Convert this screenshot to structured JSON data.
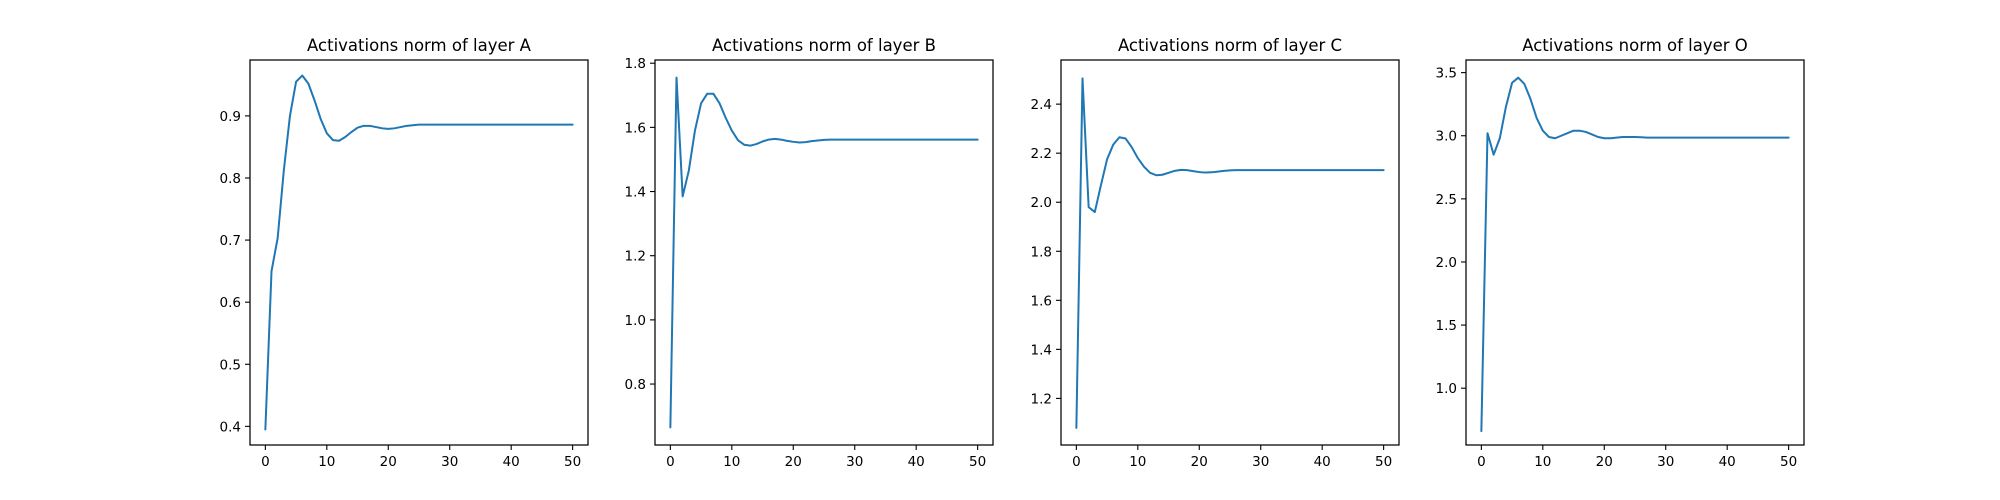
{
  "chart_data": [
    {
      "type": "line",
      "title": "Activations norm of layer A",
      "xlabel": "",
      "ylabel": "",
      "xlim": [
        -2.5,
        52.5
      ],
      "ylim": [
        0.37,
        0.99
      ],
      "xticks": [
        0,
        10,
        20,
        30,
        40,
        50
      ],
      "yticks": [
        0.4,
        0.5,
        0.6,
        0.7,
        0.8,
        0.9
      ],
      "grid": false,
      "color": "#1f77b4",
      "series": [
        {
          "x": [
            0,
            1,
            2,
            3,
            4,
            5,
            6,
            7,
            8,
            9,
            10,
            11,
            12,
            13,
            14,
            15,
            16,
            17,
            18,
            19,
            20,
            21,
            22,
            23,
            24,
            25,
            26,
            27,
            28,
            29,
            30,
            31,
            32,
            33,
            34,
            35,
            36,
            37,
            38,
            39,
            40,
            41,
            42,
            43,
            44,
            45,
            46,
            47,
            48,
            49,
            50
          ],
          "y": [
            0.395,
            0.65,
            0.703,
            0.812,
            0.9,
            0.955,
            0.965,
            0.952,
            0.925,
            0.895,
            0.872,
            0.861,
            0.86,
            0.866,
            0.874,
            0.881,
            0.884,
            0.884,
            0.882,
            0.88,
            0.879,
            0.88,
            0.882,
            0.884,
            0.885,
            0.886,
            0.886,
            0.886,
            0.886,
            0.886,
            0.886,
            0.886,
            0.886,
            0.886,
            0.886,
            0.886,
            0.886,
            0.886,
            0.886,
            0.886,
            0.886,
            0.886,
            0.886,
            0.886,
            0.886,
            0.886,
            0.886,
            0.886,
            0.886,
            0.886,
            0.886
          ]
        }
      ]
    },
    {
      "type": "line",
      "title": "Activations norm of layer B",
      "xlabel": "",
      "ylabel": "",
      "xlim": [
        -2.5,
        52.5
      ],
      "ylim": [
        0.61,
        1.81
      ],
      "xticks": [
        0,
        10,
        20,
        30,
        40,
        50
      ],
      "yticks": [
        0.8,
        1.0,
        1.2,
        1.4,
        1.6,
        1.8
      ],
      "grid": false,
      "color": "#1f77b4",
      "series": [
        {
          "x": [
            0,
            1,
            2,
            3,
            4,
            5,
            6,
            7,
            8,
            9,
            10,
            11,
            12,
            13,
            14,
            15,
            16,
            17,
            18,
            19,
            20,
            21,
            22,
            23,
            24,
            25,
            26,
            27,
            28,
            29,
            30,
            31,
            32,
            33,
            34,
            35,
            36,
            37,
            38,
            39,
            40,
            41,
            42,
            43,
            44,
            45,
            46,
            47,
            48,
            49,
            50
          ],
          "y": [
            0.665,
            1.755,
            1.385,
            1.465,
            1.59,
            1.675,
            1.705,
            1.705,
            1.675,
            1.63,
            1.59,
            1.56,
            1.546,
            1.543,
            1.548,
            1.556,
            1.562,
            1.564,
            1.562,
            1.558,
            1.555,
            1.553,
            1.554,
            1.557,
            1.559,
            1.561,
            1.562,
            1.562,
            1.562,
            1.562,
            1.562,
            1.562,
            1.562,
            1.562,
            1.562,
            1.562,
            1.562,
            1.562,
            1.562,
            1.562,
            1.562,
            1.562,
            1.562,
            1.562,
            1.562,
            1.562,
            1.562,
            1.562,
            1.562,
            1.562,
            1.562
          ]
        }
      ]
    },
    {
      "type": "line",
      "title": "Activations norm of layer C",
      "xlabel": "",
      "ylabel": "",
      "xlim": [
        -2.5,
        52.5
      ],
      "ylim": [
        1.01,
        2.58
      ],
      "xticks": [
        0,
        10,
        20,
        30,
        40,
        50
      ],
      "yticks": [
        1.2,
        1.4,
        1.6,
        1.8,
        2.0,
        2.2,
        2.4
      ],
      "grid": false,
      "color": "#1f77b4",
      "series": [
        {
          "x": [
            0,
            1,
            2,
            3,
            4,
            5,
            6,
            7,
            8,
            9,
            10,
            11,
            12,
            13,
            14,
            15,
            16,
            17,
            18,
            19,
            20,
            21,
            22,
            23,
            24,
            25,
            26,
            27,
            28,
            29,
            30,
            31,
            32,
            33,
            34,
            35,
            36,
            37,
            38,
            39,
            40,
            41,
            42,
            43,
            44,
            45,
            46,
            47,
            48,
            49,
            50
          ],
          "y": [
            1.08,
            2.505,
            1.98,
            1.96,
            2.07,
            2.175,
            2.235,
            2.265,
            2.26,
            2.225,
            2.18,
            2.145,
            2.12,
            2.11,
            2.112,
            2.12,
            2.128,
            2.132,
            2.131,
            2.127,
            2.123,
            2.121,
            2.122,
            2.125,
            2.128,
            2.13,
            2.131,
            2.131,
            2.131,
            2.131,
            2.131,
            2.131,
            2.131,
            2.131,
            2.131,
            2.131,
            2.131,
            2.131,
            2.131,
            2.131,
            2.131,
            2.131,
            2.131,
            2.131,
            2.131,
            2.131,
            2.131,
            2.131,
            2.131,
            2.131,
            2.131
          ]
        }
      ]
    },
    {
      "type": "line",
      "title": "Activations norm of layer O",
      "xlabel": "",
      "ylabel": "",
      "xlim": [
        -2.5,
        52.5
      ],
      "ylim": [
        0.55,
        3.6
      ],
      "xticks": [
        0,
        10,
        20,
        30,
        40,
        50
      ],
      "yticks": [
        1.0,
        1.5,
        2.0,
        2.5,
        3.0,
        3.5
      ],
      "grid": false,
      "color": "#1f77b4",
      "series": [
        {
          "x": [
            0,
            1,
            2,
            3,
            4,
            5,
            6,
            7,
            8,
            9,
            10,
            11,
            12,
            13,
            14,
            15,
            16,
            17,
            18,
            19,
            20,
            21,
            22,
            23,
            24,
            25,
            26,
            27,
            28,
            29,
            30,
            31,
            32,
            33,
            34,
            35,
            36,
            37,
            38,
            39,
            40,
            41,
            42,
            43,
            44,
            45,
            46,
            47,
            48,
            49,
            50
          ],
          "y": [
            0.66,
            3.02,
            2.85,
            2.98,
            3.23,
            3.42,
            3.46,
            3.41,
            3.29,
            3.14,
            3.04,
            2.99,
            2.98,
            3.0,
            3.02,
            3.04,
            3.04,
            3.03,
            3.01,
            2.99,
            2.98,
            2.98,
            2.985,
            2.99,
            2.99,
            2.99,
            2.988,
            2.985,
            2.985,
            2.985,
            2.985,
            2.985,
            2.985,
            2.985,
            2.985,
            2.985,
            2.985,
            2.985,
            2.985,
            2.985,
            2.985,
            2.985,
            2.985,
            2.985,
            2.985,
            2.985,
            2.985,
            2.985,
            2.985,
            2.985,
            2.985
          ]
        }
      ]
    }
  ]
}
